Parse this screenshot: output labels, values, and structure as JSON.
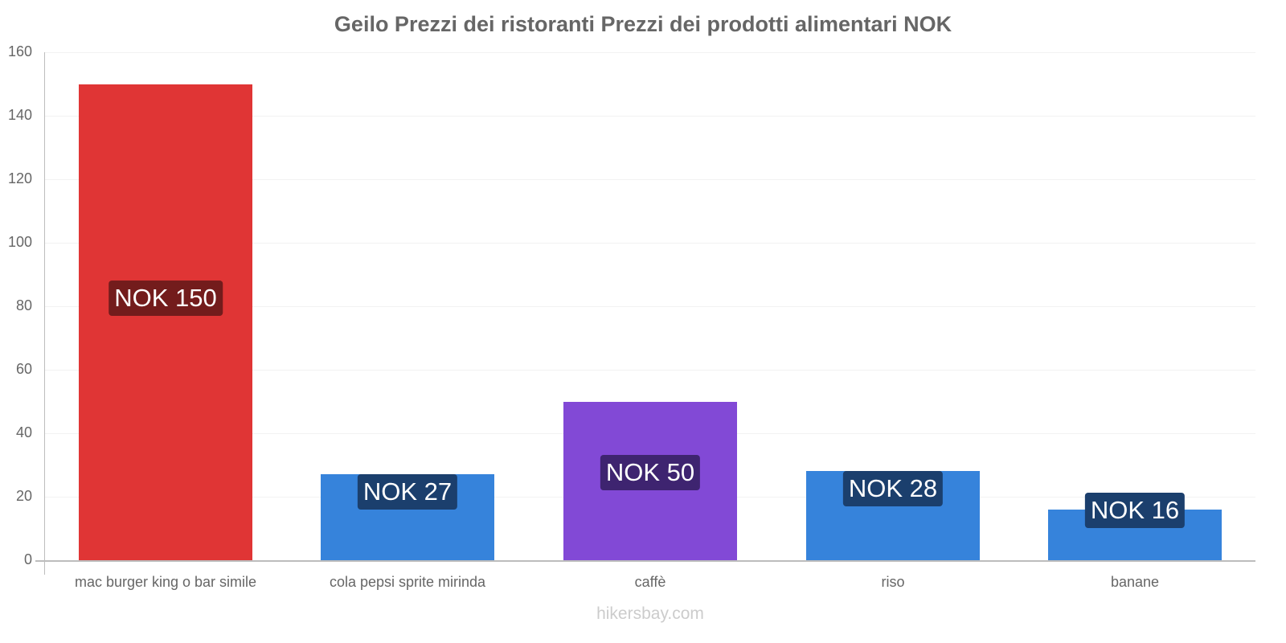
{
  "chart_data": {
    "type": "bar",
    "title": "Geilo Prezzi dei ristoranti Prezzi dei prodotti alimentari NOK",
    "xlabel": "",
    "ylabel": "",
    "ylim": [
      0,
      160
    ],
    "yticks": [
      0,
      20,
      40,
      60,
      80,
      100,
      120,
      140,
      160
    ],
    "grid": true,
    "legend": null,
    "categories": [
      "mac burger king o bar simile",
      "cola pepsi sprite mirinda",
      "caffè",
      "riso",
      "banane"
    ],
    "values": [
      150,
      27,
      50,
      28,
      16
    ],
    "data_labels": [
      "NOK 150",
      "NOK 27",
      "NOK 50",
      "NOK 28",
      "NOK 16"
    ],
    "bar_colors": [
      "#e03535",
      "#3683db",
      "#8249d6",
      "#3683db",
      "#3683db"
    ],
    "label_colors": [
      "#731c1c",
      "#1b3f6d",
      "#3e2470",
      "#1b3f6d",
      "#1b3f6d"
    ],
    "watermark": "hikersbay.com"
  },
  "title": "Geilo Prezzi dei ristoranti Prezzi dei prodotti alimentari NOK",
  "yticks": [
    "0",
    "20",
    "40",
    "60",
    "80",
    "100",
    "120",
    "140",
    "160"
  ],
  "bars": [
    {
      "category": "mac burger king o bar simile",
      "value": 150,
      "label": "NOK 150"
    },
    {
      "category": "cola pepsi sprite mirinda",
      "value": 27,
      "label": "NOK 27"
    },
    {
      "category": "caffè",
      "value": 50,
      "label": "NOK 50"
    },
    {
      "category": "riso",
      "value": 28,
      "label": "NOK 28"
    },
    {
      "category": "banane",
      "value": 16,
      "label": "NOK 16"
    }
  ],
  "watermark": "hikersbay.com"
}
